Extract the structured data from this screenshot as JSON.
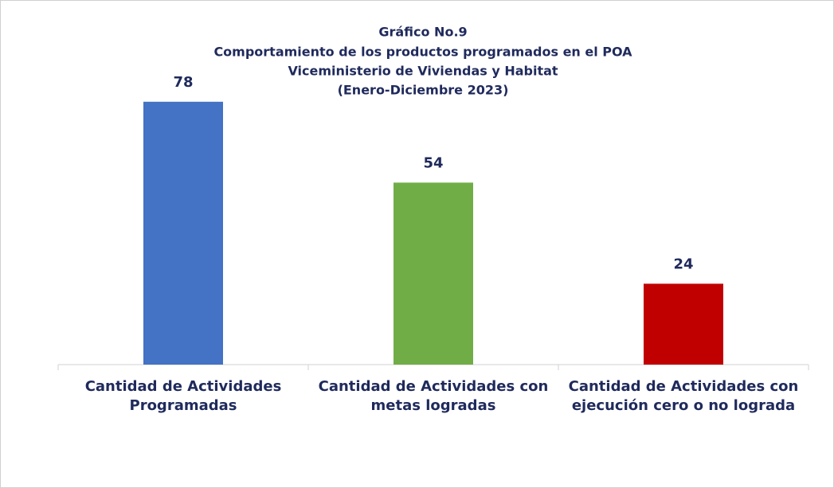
{
  "chart_data": {
    "type": "bar",
    "title": [
      "Gráfico No.9",
      "Comportamiento de los productos programados en el POA",
      "Viceministerio de Viviendas y Habitat",
      "(Enero-Diciembre 2023)"
    ],
    "categories": [
      "Cantidad de Actividades Programadas",
      "Cantidad de Actividades con metas logradas",
      "Cantidad de Actividades con ejecución cero o no lograda"
    ],
    "values": [
      78,
      54,
      24
    ],
    "colors": [
      "#4472c4",
      "#70ad47",
      "#c00000"
    ],
    "ylim": [
      0,
      90
    ]
  }
}
